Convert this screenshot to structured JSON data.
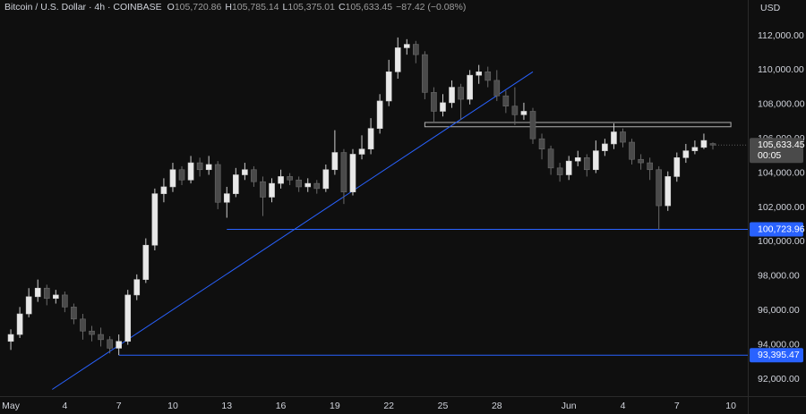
{
  "header": {
    "symbol": "Bitcoin / U.S. Dollar · 4h · COINBASE",
    "ohlc": [
      {
        "label": "O",
        "value": "105,720.86"
      },
      {
        "label": "H",
        "value": "105,785.14"
      },
      {
        "label": "L",
        "value": "105,375.01"
      },
      {
        "label": "C",
        "value": "105,633.45"
      }
    ],
    "change": "−87.42 (−0.08%)",
    "currency": "USD"
  },
  "chart_data": {
    "type": "candlestick",
    "x": [
      1,
      1.5,
      2,
      2.5,
      3,
      3.5,
      4,
      4.5,
      5,
      5.5,
      6,
      6.5,
      7,
      7.5,
      8,
      8.5,
      9,
      9.5,
      10,
      10.5,
      11,
      11.5,
      12,
      12.5,
      13,
      13.5,
      14,
      14.5,
      15,
      15.5,
      16,
      16.5,
      17,
      17.5,
      18,
      18.5,
      19,
      19.5,
      20,
      20.5,
      21,
      21.5,
      22,
      22.5,
      23,
      23.5,
      24,
      24.5,
      25,
      25.5,
      26,
      26.5,
      27,
      27.5,
      28,
      28.5,
      29,
      29.5,
      30,
      30.5,
      31,
      31.5,
      32,
      32.5,
      33,
      33.5,
      34,
      34.5,
      35,
      35.5,
      36,
      36.5,
      37,
      37.5,
      38,
      38.5,
      39,
      39.5,
      40
    ],
    "open": [
      94200,
      94600,
      95800,
      96800,
      97300,
      96700,
      96900,
      96200,
      95500,
      94800,
      94600,
      94300,
      93800,
      94200,
      96900,
      97800,
      99800,
      102800,
      103200,
      104200,
      103600,
      104600,
      104200,
      104500,
      102300,
      102800,
      103900,
      104200,
      103500,
      102600,
      103400,
      103800,
      103600,
      103200,
      103400,
      103100,
      104200,
      105200,
      102900,
      105100,
      105400,
      106600,
      108200,
      109900,
      111300,
      111500,
      110900,
      108700,
      107600,
      108100,
      109000,
      108300,
      109700,
      109900,
      109400,
      108500,
      107900,
      107400,
      107600,
      106000,
      105400,
      104300,
      103900,
      104700,
      104900,
      104200,
      105300,
      105700,
      106400,
      105800,
      104800,
      104600,
      104200,
      102100,
      103800,
      104900,
      105300,
      105500,
      105720.86
    ],
    "high": [
      94900,
      96200,
      97300,
      97800,
      97500,
      97200,
      97100,
      96400,
      95800,
      95100,
      95000,
      94500,
      94600,
      97200,
      98100,
      100200,
      103100,
      103700,
      104600,
      104400,
      105000,
      104900,
      105000,
      104700,
      103200,
      104300,
      104600,
      104400,
      103800,
      103700,
      104200,
      104000,
      103800,
      103700,
      103600,
      104500,
      106500,
      105400,
      105400,
      106200,
      107200,
      108600,
      110600,
      111900,
      111800,
      111700,
      111100,
      109000,
      108600,
      109400,
      109200,
      110000,
      110300,
      110200,
      110000,
      108800,
      109000,
      108100,
      107800,
      106300,
      105600,
      104600,
      105000,
      105300,
      105100,
      105900,
      106000,
      106900,
      106600,
      106000,
      105100,
      104900,
      104400,
      104100,
      105200,
      105700,
      105900,
      106300,
      105785.14
    ],
    "low": [
      93700,
      94400,
      95600,
      96500,
      96300,
      96400,
      95900,
      95200,
      94300,
      94200,
      93900,
      93500,
      93400,
      94000,
      96600,
      97600,
      99500,
      102300,
      102900,
      103300,
      103400,
      103800,
      103900,
      101900,
      101400,
      102600,
      103600,
      103200,
      101500,
      102300,
      103100,
      103300,
      102900,
      102900,
      102800,
      102900,
      103900,
      102200,
      102700,
      104800,
      105100,
      106300,
      107900,
      109500,
      110900,
      110400,
      108300,
      107000,
      107300,
      107800,
      107100,
      108000,
      109200,
      109000,
      108200,
      107500,
      106800,
      107100,
      105700,
      104800,
      103900,
      103500,
      103600,
      104400,
      103800,
      104000,
      105000,
      105400,
      105500,
      104500,
      104200,
      103600,
      100700,
      101800,
      103500,
      104600,
      105100,
      105400,
      105375.01
    ],
    "close": [
      94600,
      95800,
      96800,
      97300,
      96700,
      96900,
      96200,
      95500,
      94800,
      94600,
      94300,
      93800,
      94200,
      96900,
      97800,
      99800,
      102800,
      103200,
      104200,
      103600,
      104600,
      104200,
      104500,
      102300,
      102800,
      103900,
      104200,
      103500,
      102600,
      103400,
      103800,
      103600,
      103200,
      103400,
      103100,
      104200,
      105200,
      102900,
      105100,
      105400,
      106600,
      108200,
      109900,
      111300,
      111500,
      110900,
      108700,
      107600,
      108100,
      109000,
      108300,
      109700,
      109900,
      109400,
      108500,
      107900,
      107400,
      107600,
      106000,
      105400,
      104300,
      103900,
      104700,
      104900,
      104200,
      105300,
      105700,
      106400,
      105800,
      104800,
      104600,
      104200,
      102100,
      103800,
      104900,
      105300,
      105500,
      105900,
      105633.45
    ],
    "up_color": "#e8e8e8",
    "down_color": "#4a4a4a",
    "xlim": [
      0.4,
      41.94
    ],
    "xticks": [
      {
        "value": 1,
        "label": "May"
      },
      4,
      7,
      10,
      13,
      16,
      19,
      22,
      25,
      28,
      {
        "value": 32,
        "label": "Jun"
      },
      {
        "value": 35,
        "label": "4"
      },
      {
        "value": 38,
        "label": "7"
      },
      {
        "value": 41,
        "label": "10"
      }
    ],
    "ylim": [
      91010,
      114083
    ],
    "yticks": [
      {
        "value": 92000,
        "label": "92,000.00"
      },
      {
        "value": 94000,
        "label": "94,000.00"
      },
      {
        "value": 96000,
        "label": "96,000.00"
      },
      {
        "value": 98000,
        "label": "98,000.00"
      },
      {
        "value": 100000,
        "label": "100,000.00"
      },
      {
        "value": 102000,
        "label": "102,000.00"
      },
      {
        "value": 104000,
        "label": "104,000.00"
      },
      {
        "value": 106000,
        "label": "106,000.00"
      },
      {
        "value": 108000,
        "label": "108,000.00"
      },
      {
        "value": 110000,
        "label": "110,000.00"
      },
      {
        "value": 112000,
        "label": "112,000.00"
      }
    ],
    "grid": false,
    "levels": [
      {
        "x": 13,
        "value": 100723.96,
        "label": "100,723.96",
        "color": "#2962ff"
      },
      {
        "x": 7,
        "value": 93395.47,
        "label": "93,395.47",
        "color": "#2962ff"
      }
    ],
    "trendline": {
      "x": [
        3.3,
        30
      ],
      "y": [
        91400,
        109900
      ],
      "color": "#2962ff"
    },
    "zone": {
      "x": [
        24,
        41
      ],
      "y": [
        106700,
        106950
      ],
      "color": "#b0b0b0"
    },
    "last_price": {
      "value": 105633.45,
      "label": "105,633.45",
      "countdown": "00:05",
      "color": "#4a4a4a"
    }
  }
}
